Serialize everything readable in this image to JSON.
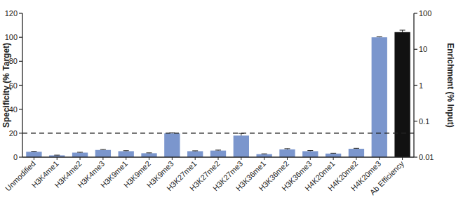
{
  "chart_data": {
    "type": "bar",
    "categories": [
      "Unmodified",
      "H3K4me1",
      "H3K4me2",
      "H3K4me3",
      "H3K9me1",
      "H3K9me2",
      "H3K9me3",
      "H3K27me1",
      "H3K27me2",
      "H3K27me3",
      "H3K36me1",
      "H3K36me2",
      "H3K36me3",
      "H4K20me1",
      "H4K20me2",
      "H4K20me3",
      "Ab Efficiency"
    ],
    "y_label": "Specificity (% Target)",
    "y2_label": "Enrichment (% Input)",
    "ylim": [
      0,
      120
    ],
    "yticks": [
      0,
      20,
      40,
      60,
      80,
      100,
      120
    ],
    "y2lim": [
      0.01,
      100
    ],
    "y2ticks": [
      0.01,
      0.1,
      1,
      10,
      100
    ],
    "log": "y2",
    "reference_line": {
      "value": 20,
      "line_style": "dashed"
    },
    "series": [
      {
        "color": "#7b96cd",
        "values": [
          4.5,
          1.5,
          3.8,
          6,
          5,
          3.3,
          19.8,
          5,
          5.5,
          18,
          2.5,
          6.5,
          5,
          3,
          7,
          100,
          null
        ],
        "errors": [
          0.4,
          0.2,
          0.3,
          0.4,
          0.4,
          0.3,
          0.6,
          0.3,
          0.4,
          1.8,
          0.3,
          0.6,
          0.5,
          0.3,
          0.4,
          0.4,
          null
        ]
      },
      {
        "axis": "y2",
        "color": "#111111",
        "values": [
          null,
          null,
          null,
          null,
          null,
          null,
          null,
          null,
          null,
          null,
          null,
          null,
          null,
          null,
          null,
          null,
          30
        ],
        "errors": [
          null,
          null,
          null,
          null,
          null,
          null,
          null,
          null,
          null,
          null,
          null,
          null,
          null,
          null,
          null,
          null,
          4
        ]
      }
    ]
  }
}
